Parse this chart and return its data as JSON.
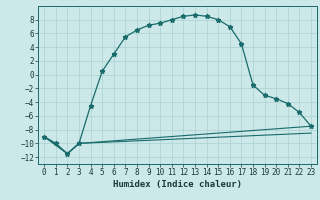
{
  "title": "",
  "xlabel": "Humidex (Indice chaleur)",
  "bg_color": "#cce8e8",
  "line_color": "#1a6b6b",
  "grid_color": "#b0d4d4",
  "xlim": [
    -0.5,
    23.5
  ],
  "ylim": [
    -13,
    10
  ],
  "xticks": [
    0,
    1,
    2,
    3,
    4,
    5,
    6,
    7,
    8,
    9,
    10,
    11,
    12,
    13,
    14,
    15,
    16,
    17,
    18,
    19,
    20,
    21,
    22,
    23
  ],
  "yticks": [
    -12,
    -10,
    -8,
    -6,
    -4,
    -2,
    0,
    2,
    4,
    6,
    8
  ],
  "line1_x": [
    0,
    1,
    2,
    3,
    4,
    5,
    6,
    7,
    8,
    9,
    10,
    11,
    12,
    13,
    14,
    15,
    16,
    17,
    18,
    19,
    20,
    21,
    22,
    23
  ],
  "line1_y": [
    -9.0,
    -10.0,
    -11.5,
    -10.0,
    -4.5,
    0.5,
    3.0,
    5.5,
    6.5,
    7.2,
    7.5,
    8.0,
    8.5,
    8.7,
    8.5,
    8.0,
    7.0,
    4.5,
    -1.5,
    -3.0,
    -3.5,
    -4.2,
    -5.5,
    -7.5
  ],
  "line2_x": [
    0,
    2,
    3,
    23
  ],
  "line2_y": [
    -9.0,
    -11.5,
    -10.0,
    -7.5
  ],
  "line3_x": [
    0,
    2,
    3,
    23
  ],
  "line3_y": [
    -9.0,
    -11.5,
    -10.0,
    -8.5
  ],
  "tick_fontsize": 5.5,
  "xlabel_fontsize": 6.5
}
